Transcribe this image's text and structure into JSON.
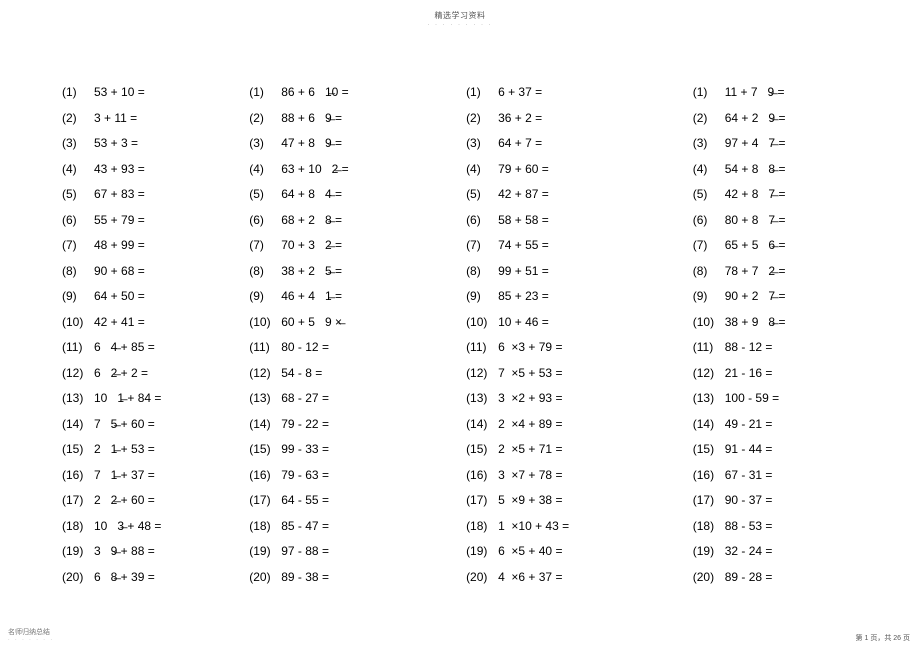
{
  "header": {
    "title": "精选学习资料",
    "dots": "· · · · · · · · ·"
  },
  "footer": {
    "left_text": "名师归纳总结",
    "left_dots": "· · · · · · ·",
    "right_text": "第 1 页，共 26 页"
  },
  "columns": [
    {
      "rows": [
        {
          "idx": "(1)",
          "expr": "53 + 10 ="
        },
        {
          "idx": "(2)",
          "expr": "3 + 11 ="
        },
        {
          "idx": "(3)",
          "expr": "53 + 3 ="
        },
        {
          "idx": "(4)",
          "expr": "43 + 93 ="
        },
        {
          "idx": "(5)",
          "expr": "67 + 83 ="
        },
        {
          "idx": "(6)",
          "expr": "55 + 79 ="
        },
        {
          "idx": "(7)",
          "expr": "48 + 99 ="
        },
        {
          "idx": "(8)",
          "expr": "90 + 68 ="
        },
        {
          "idx": "(9)",
          "expr": "64 + 50 ="
        },
        {
          "idx": "(10)",
          "expr": "42 + 41 ="
        },
        {
          "idx": "(11)",
          "expr": "6   4̶ + 85 ="
        },
        {
          "idx": "(12)",
          "expr": "6   2̶ + 2 ="
        },
        {
          "idx": "(13)",
          "expr": "10   1̶ + 84 ="
        },
        {
          "idx": "(14)",
          "expr": "7   5̶ + 60 ="
        },
        {
          "idx": "(15)",
          "expr": "2   1̶ + 53 ="
        },
        {
          "idx": "(16)",
          "expr": "7   1̶ + 37 ="
        },
        {
          "idx": "(17)",
          "expr": "2   2̶ + 60 ="
        },
        {
          "idx": "(18)",
          "expr": "10   3̶ + 48 ="
        },
        {
          "idx": "(19)",
          "expr": "3   9̶ + 88 ="
        },
        {
          "idx": "(20)",
          "expr": "6   8̶ + 39 ="
        }
      ]
    },
    {
      "rows": [
        {
          "idx": "(1)",
          "expr": "86 + 6   1̶0 ="
        },
        {
          "idx": "(2)",
          "expr": "88 + 6   9̶ ="
        },
        {
          "idx": "(3)",
          "expr": "47 + 8   9̶ ="
        },
        {
          "idx": "(4)",
          "expr": "63 + 10   2̶ ="
        },
        {
          "idx": "(5)",
          "expr": "64 + 8   4̶ ="
        },
        {
          "idx": "(6)",
          "expr": "68 + 2   8̶ ="
        },
        {
          "idx": "(7)",
          "expr": "70 + 3   2̶ ="
        },
        {
          "idx": "(8)",
          "expr": "38 + 2   5̶ ="
        },
        {
          "idx": "(9)",
          "expr": "46 + 4   1̶ ="
        },
        {
          "idx": "(10)",
          "expr": "60 + 5   9 ×̶"
        },
        {
          "idx": "(11)",
          "expr": "80 - 12 ="
        },
        {
          "idx": "(12)",
          "expr": "54 - 8 ="
        },
        {
          "idx": "(13)",
          "expr": "68 - 27 ="
        },
        {
          "idx": "(14)",
          "expr": "79 - 22 ="
        },
        {
          "idx": "(15)",
          "expr": "99 - 33 ="
        },
        {
          "idx": "(16)",
          "expr": "79 - 63 ="
        },
        {
          "idx": "(17)",
          "expr": "64 - 55 ="
        },
        {
          "idx": "(18)",
          "expr": "85 - 47 ="
        },
        {
          "idx": "(19)",
          "expr": "97 - 88 ="
        },
        {
          "idx": "(20)",
          "expr": "89 - 38 ="
        }
      ]
    },
    {
      "rows": [
        {
          "idx": "(1)",
          "expr": "6 + 37 ="
        },
        {
          "idx": "(2)",
          "expr": "36 + 2 ="
        },
        {
          "idx": "(3)",
          "expr": "64 + 7 ="
        },
        {
          "idx": "(4)",
          "expr": "79 + 60 ="
        },
        {
          "idx": "(5)",
          "expr": "42 + 87 ="
        },
        {
          "idx": "(6)",
          "expr": "58 + 58 ="
        },
        {
          "idx": "(7)",
          "expr": "74 + 55 ="
        },
        {
          "idx": "(8)",
          "expr": "99 + 51 ="
        },
        {
          "idx": "(9)",
          "expr": "85 + 23 ="
        },
        {
          "idx": "(10)",
          "expr": "10 + 46 ="
        },
        {
          "idx": "(11)",
          "expr": "6  ×3 + 79 ="
        },
        {
          "idx": "(12)",
          "expr": "7  ×5 + 53 ="
        },
        {
          "idx": "(13)",
          "expr": "3  ×2 + 93 ="
        },
        {
          "idx": "(14)",
          "expr": "2  ×4 + 89 ="
        },
        {
          "idx": "(15)",
          "expr": "2  ×5 + 71 ="
        },
        {
          "idx": "(16)",
          "expr": "3  ×7 + 78 ="
        },
        {
          "idx": "(17)",
          "expr": "5  ×9 + 38 ="
        },
        {
          "idx": "(18)",
          "expr": "1  ×10 + 43 ="
        },
        {
          "idx": "(19)",
          "expr": "6  ×5 + 40 ="
        },
        {
          "idx": "(20)",
          "expr": "4  ×6 + 37 ="
        }
      ]
    },
    {
      "rows": [
        {
          "idx": "(1)",
          "expr": "11 + 7   9̶ ="
        },
        {
          "idx": "(2)",
          "expr": "64 + 2   9̶ ="
        },
        {
          "idx": "(3)",
          "expr": "97 + 4   7̶ ="
        },
        {
          "idx": "(4)",
          "expr": "54 + 8   8̶ ="
        },
        {
          "idx": "(5)",
          "expr": "42 + 8   7̶ ="
        },
        {
          "idx": "(6)",
          "expr": "80 + 8   7̶ ="
        },
        {
          "idx": "(7)",
          "expr": "65 + 5   6̶ ="
        },
        {
          "idx": "(8)",
          "expr": "78 + 7   2̶ ="
        },
        {
          "idx": "(9)",
          "expr": "90 + 2   7̶ ="
        },
        {
          "idx": "(10)",
          "expr": "38 + 9   8̶ ="
        },
        {
          "idx": "(11)",
          "expr": "88 - 12 ="
        },
        {
          "idx": "(12)",
          "expr": "21 - 16 ="
        },
        {
          "idx": "(13)",
          "expr": "100 - 59 ="
        },
        {
          "idx": "(14)",
          "expr": "49 - 21 ="
        },
        {
          "idx": "(15)",
          "expr": "91 - 44 ="
        },
        {
          "idx": "(16)",
          "expr": "67 - 31 ="
        },
        {
          "idx": "(17)",
          "expr": "90 - 37 ="
        },
        {
          "idx": "(18)",
          "expr": "88 - 53 ="
        },
        {
          "idx": "(19)",
          "expr": "32 - 24 ="
        },
        {
          "idx": "(20)",
          "expr": "89 - 28 ="
        }
      ]
    }
  ]
}
